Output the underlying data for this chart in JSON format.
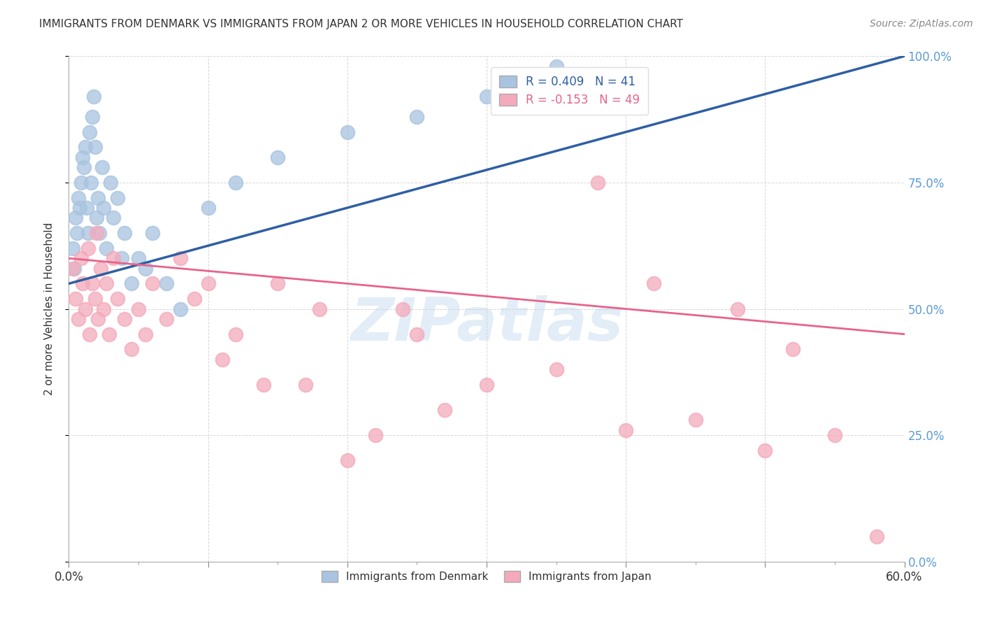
{
  "title": "IMMIGRANTS FROM DENMARK VS IMMIGRANTS FROM JAPAN 2 OR MORE VEHICLES IN HOUSEHOLD CORRELATION CHART",
  "source": "Source: ZipAtlas.com",
  "ylabel": "2 or more Vehicles in Household",
  "xlim": [
    0,
    60
  ],
  "ylim": [
    0,
    100
  ],
  "legend_denmark": "R = 0.409   N = 41",
  "legend_japan": "R = -0.153   N = 49",
  "denmark_color": "#A8C4E0",
  "japan_color": "#F4AABC",
  "denmark_line_color": "#2E5FA3",
  "japan_line_color": "#E8638A",
  "watermark": "ZIPatlas",
  "ytick_color": "#5B9BD5",
  "denmark_x": [
    0.3,
    0.4,
    0.5,
    0.6,
    0.7,
    0.8,
    0.9,
    1.0,
    1.1,
    1.2,
    1.3,
    1.4,
    1.5,
    1.6,
    1.7,
    1.8,
    1.9,
    2.0,
    2.1,
    2.2,
    2.4,
    2.5,
    2.7,
    3.0,
    3.2,
    3.5,
    3.8,
    4.0,
    4.5,
    5.0,
    5.5,
    6.0,
    7.0,
    8.0,
    10.0,
    12.0,
    15.0,
    20.0,
    25.0,
    30.0,
    35.0
  ],
  "denmark_y": [
    62,
    58,
    68,
    65,
    72,
    70,
    75,
    80,
    78,
    82,
    70,
    65,
    85,
    75,
    88,
    92,
    82,
    68,
    72,
    65,
    78,
    70,
    62,
    75,
    68,
    72,
    60,
    65,
    55,
    60,
    58,
    65,
    55,
    50,
    70,
    75,
    80,
    85,
    88,
    92,
    98
  ],
  "japan_x": [
    0.3,
    0.5,
    0.7,
    0.9,
    1.0,
    1.2,
    1.4,
    1.5,
    1.7,
    1.9,
    2.0,
    2.1,
    2.3,
    2.5,
    2.7,
    2.9,
    3.2,
    3.5,
    4.0,
    4.5,
    5.0,
    5.5,
    6.0,
    7.0,
    8.0,
    9.0,
    10.0,
    11.0,
    12.0,
    14.0,
    15.0,
    17.0,
    18.0,
    20.0,
    22.0,
    24.0,
    25.0,
    27.0,
    30.0,
    35.0,
    38.0,
    40.0,
    42.0,
    45.0,
    48.0,
    50.0,
    52.0,
    55.0,
    58.0
  ],
  "japan_y": [
    58,
    52,
    48,
    60,
    55,
    50,
    62,
    45,
    55,
    52,
    65,
    48,
    58,
    50,
    55,
    45,
    60,
    52,
    48,
    42,
    50,
    45,
    55,
    48,
    60,
    52,
    55,
    40,
    45,
    35,
    55,
    35,
    50,
    20,
    25,
    50,
    45,
    30,
    35,
    38,
    75,
    26,
    55,
    28,
    50,
    22,
    42,
    25,
    5
  ],
  "denmark_trend_x": [
    0,
    60
  ],
  "denmark_trend_y_intercept": 55,
  "denmark_trend_slope": 0.75,
  "japan_trend_x": [
    0,
    60
  ],
  "japan_trend_y_intercept": 60,
  "japan_trend_slope": -0.25
}
